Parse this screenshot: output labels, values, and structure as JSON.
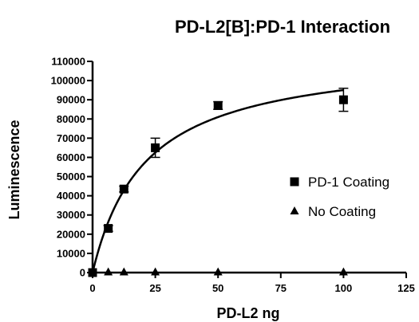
{
  "chart_data": {
    "type": "scatter",
    "title": "PD-L2[B]:PD-1 Interaction",
    "xlabel": "PD-L2 ng",
    "ylabel": "Luminescence",
    "xlim": [
      0,
      125
    ],
    "ylim": [
      0,
      110000
    ],
    "x_ticks": [
      0,
      25,
      50,
      75,
      100,
      125
    ],
    "y_ticks": [
      0,
      10000,
      20000,
      30000,
      40000,
      50000,
      60000,
      70000,
      80000,
      90000,
      100000,
      110000
    ],
    "grid": false,
    "legend_position": "right",
    "series": [
      {
        "name": "PD-1 Coating",
        "marker": "square",
        "color": "#000000",
        "points": [
          {
            "x": 0,
            "y": 0,
            "err": 0
          },
          {
            "x": 6.25,
            "y": 23000,
            "err": 1500
          },
          {
            "x": 12.5,
            "y": 43500,
            "err": 1500
          },
          {
            "x": 25,
            "y": 65000,
            "err": 5000
          },
          {
            "x": 50,
            "y": 87000,
            "err": 2000
          },
          {
            "x": 100,
            "y": 90000,
            "err": 6000
          }
        ],
        "fit_curve": {
          "model": "one-site binding",
          "bmax": 115000,
          "kd": 21
        }
      },
      {
        "name": "No Coating",
        "marker": "triangle",
        "color": "#000000",
        "points": [
          {
            "x": 0,
            "y": 200,
            "err": 0
          },
          {
            "x": 6.25,
            "y": 200,
            "err": 0
          },
          {
            "x": 12.5,
            "y": 200,
            "err": 0
          },
          {
            "x": 25,
            "y": 200,
            "err": 0
          },
          {
            "x": 50,
            "y": 200,
            "err": 0
          },
          {
            "x": 100,
            "y": 200,
            "err": 0
          }
        ]
      }
    ]
  }
}
